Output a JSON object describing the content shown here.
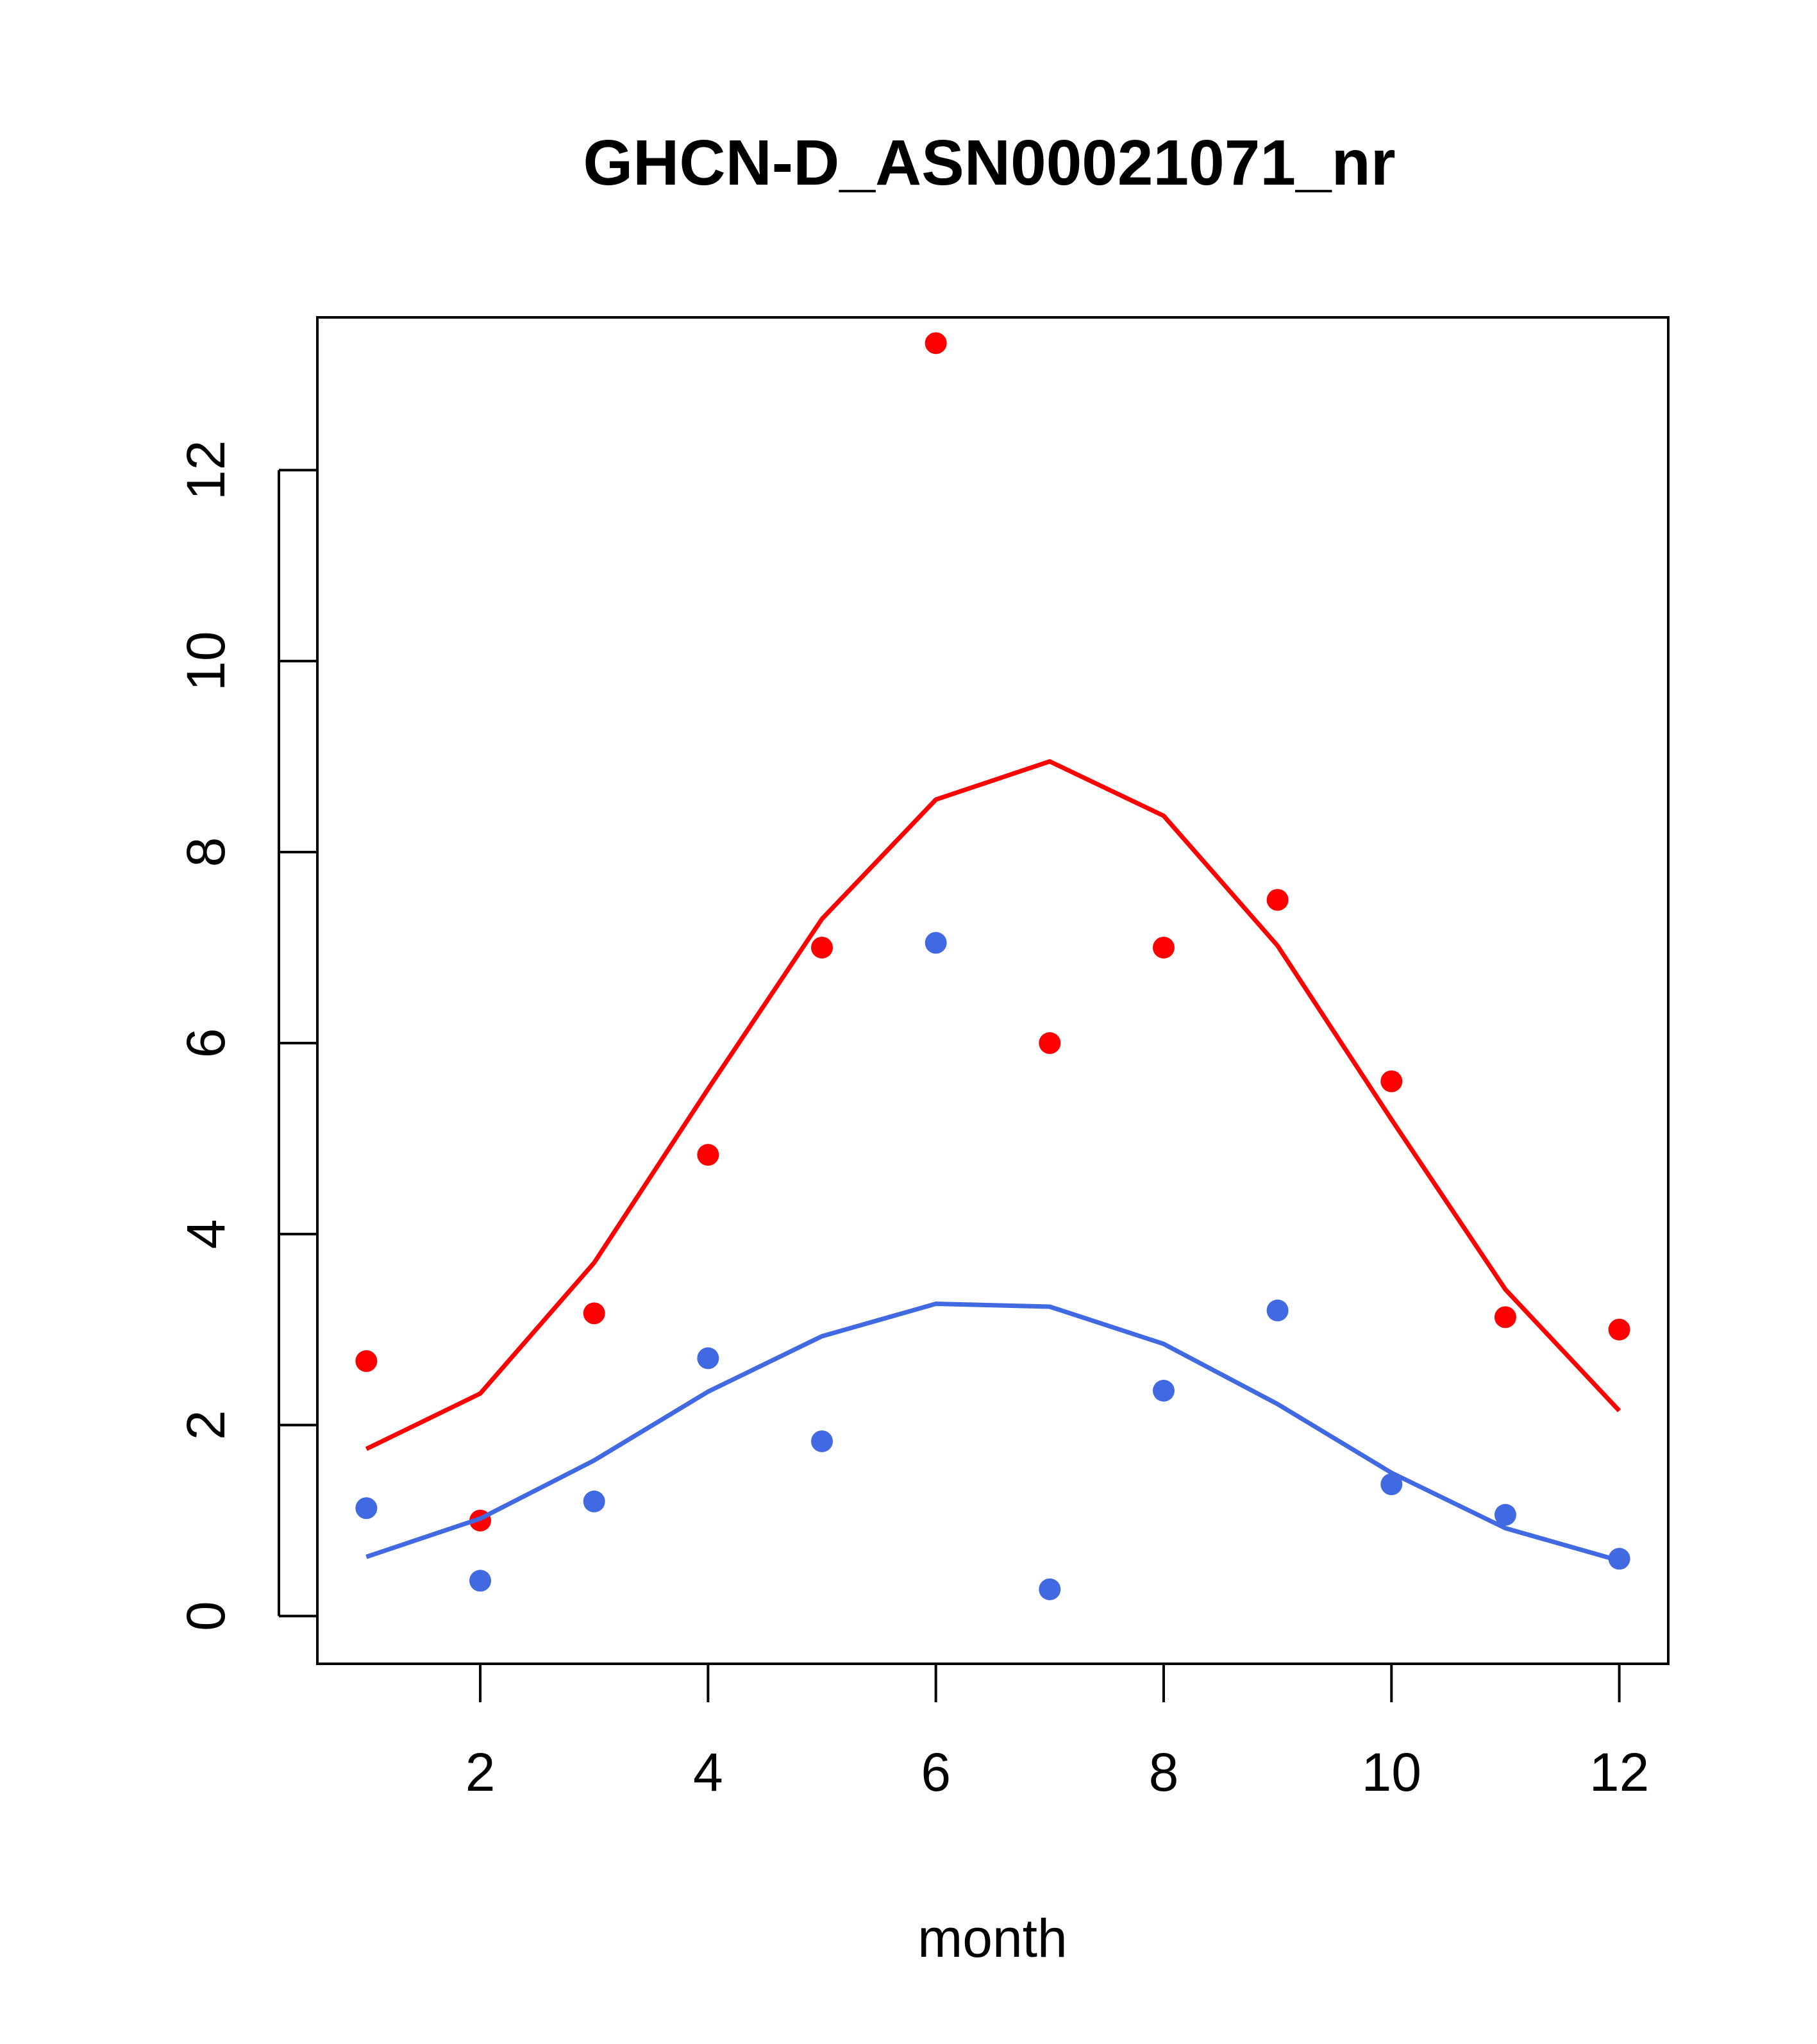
{
  "chart_data": {
    "type": "scatter",
    "title": "GHCN-D_ASN00021071_nr",
    "xlabel": "month",
    "ylabel": "",
    "xlim": [
      0.57,
      12.43
    ],
    "ylim": [
      -0.5,
      13.6
    ],
    "x_ticks": [
      2,
      4,
      6,
      8,
      10,
      12
    ],
    "y_ticks": [
      0,
      2,
      4,
      6,
      8,
      10,
      12
    ],
    "grid": false,
    "legend": "none",
    "series": [
      {
        "color": "#ff0000",
        "kind": "points",
        "x": [
          1,
          2,
          3,
          4,
          5,
          6,
          7,
          8,
          9,
          10,
          11,
          12
        ],
        "values": [
          2.67,
          1.0,
          3.17,
          4.83,
          7.0,
          13.33,
          6.0,
          7.0,
          7.5,
          5.6,
          3.13,
          3.0
        ]
      },
      {
        "color": "#ff0000",
        "kind": "line",
        "x": [
          1,
          2,
          3,
          4,
          5,
          6,
          7,
          8,
          9,
          10,
          11,
          12
        ],
        "values": [
          1.75,
          2.33,
          3.7,
          5.52,
          7.3,
          8.55,
          8.95,
          8.38,
          7.02,
          5.2,
          3.42,
          2.15
        ]
      },
      {
        "color": "#4169e1",
        "kind": "points",
        "x": [
          1,
          2,
          3,
          4,
          5,
          6,
          7,
          8,
          9,
          10,
          11,
          12
        ],
        "values": [
          1.13,
          0.37,
          1.2,
          2.7,
          1.83,
          7.05,
          0.28,
          2.36,
          3.2,
          1.38,
          1.06,
          0.6
        ]
      },
      {
        "color": "#4169e1",
        "kind": "line",
        "x": [
          1,
          2,
          3,
          4,
          5,
          6,
          7,
          8,
          9,
          10,
          11,
          12
        ],
        "values": [
          0.62,
          1.02,
          1.63,
          2.35,
          2.93,
          3.27,
          3.24,
          2.85,
          2.22,
          1.5,
          0.92,
          0.58
        ]
      }
    ]
  }
}
